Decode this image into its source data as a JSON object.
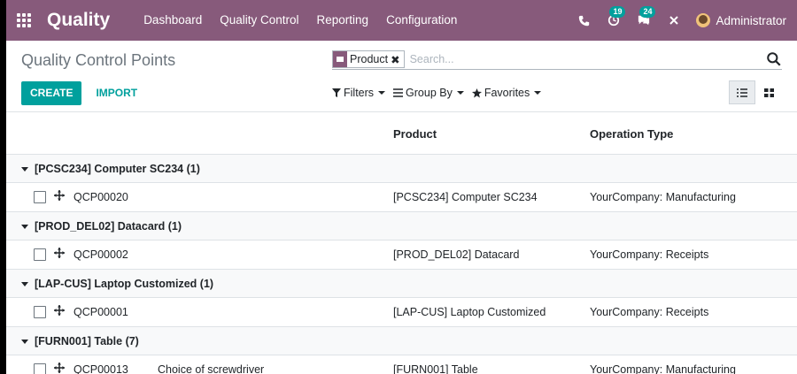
{
  "navbar": {
    "app_name": "Quality",
    "menu": [
      "Dashboard",
      "Quality Control",
      "Reporting",
      "Configuration"
    ],
    "icons": {
      "phone": "phone-icon",
      "activity": "activity-icon",
      "chat": "chat-icon",
      "debug": "debug-icon"
    },
    "activity_count": "19",
    "message_count": "24",
    "user_name": "Administrator"
  },
  "control_panel": {
    "title": "Quality Control Points",
    "create_label": "CREATE",
    "import_label": "IMPORT",
    "search": {
      "facet": "Product",
      "placeholder": "Search..."
    },
    "filters_label": "Filters",
    "group_by_label": "Group By",
    "favorites_label": "Favorites"
  },
  "table": {
    "headers": {
      "product": "Product",
      "operation_type": "Operation Type"
    },
    "groups": [
      {
        "label": "[PCSC234] Computer SC234 (1)",
        "rows": [
          {
            "reference": "QCP00020",
            "title": "",
            "product": "[PCSC234] Computer SC234",
            "operation_type": "YourCompany: Manufacturing"
          }
        ]
      },
      {
        "label": "[PROD_DEL02] Datacard (1)",
        "rows": [
          {
            "reference": "QCP00002",
            "title": "",
            "product": "[PROD_DEL02] Datacard",
            "operation_type": "YourCompany: Receipts"
          }
        ]
      },
      {
        "label": "[LAP-CUS] Laptop Customized (1)",
        "rows": [
          {
            "reference": "QCP00001",
            "title": "",
            "product": "[LAP-CUS] Laptop Customized",
            "operation_type": "YourCompany: Receipts"
          }
        ]
      },
      {
        "label": "[FURN001] Table (7)",
        "rows": [
          {
            "reference": "QCP00013",
            "title": "Choice of screwdriver",
            "product": "[FURN001] Table",
            "operation_type": "YourCompany: Manufacturing"
          }
        ]
      }
    ]
  },
  "colors": {
    "brand": "#875A7B",
    "accent": "#00A09D"
  }
}
